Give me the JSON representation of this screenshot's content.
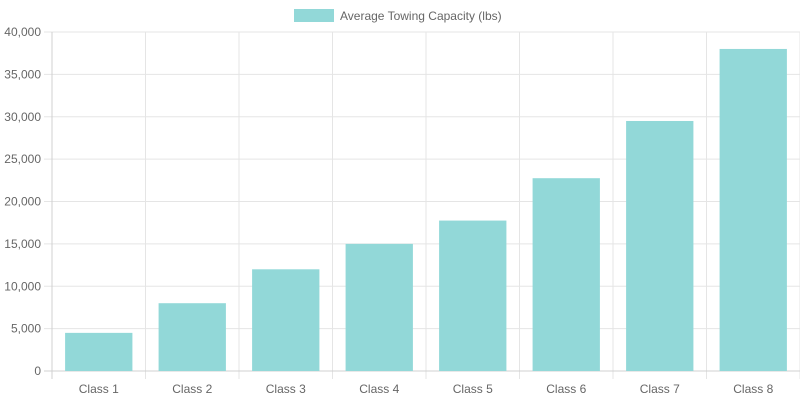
{
  "chart_data": {
    "type": "bar",
    "categories": [
      "Class 1",
      "Class 2",
      "Class 3",
      "Class 4",
      "Class 5",
      "Class 6",
      "Class 7",
      "Class 8"
    ],
    "series": [
      {
        "name": "Average Towing Capacity (lbs)",
        "values": [
          4500,
          8000,
          12000,
          15000,
          17750,
          22750,
          29500,
          38000
        ],
        "color": "#92d8d8"
      }
    ],
    "y_ticks": [
      "0",
      "5,000",
      "10,000",
      "15,000",
      "20,000",
      "25,000",
      "30,000",
      "35,000",
      "40,000"
    ],
    "ylim": [
      0,
      40000
    ],
    "grid": true,
    "legend_position": "top-center"
  }
}
